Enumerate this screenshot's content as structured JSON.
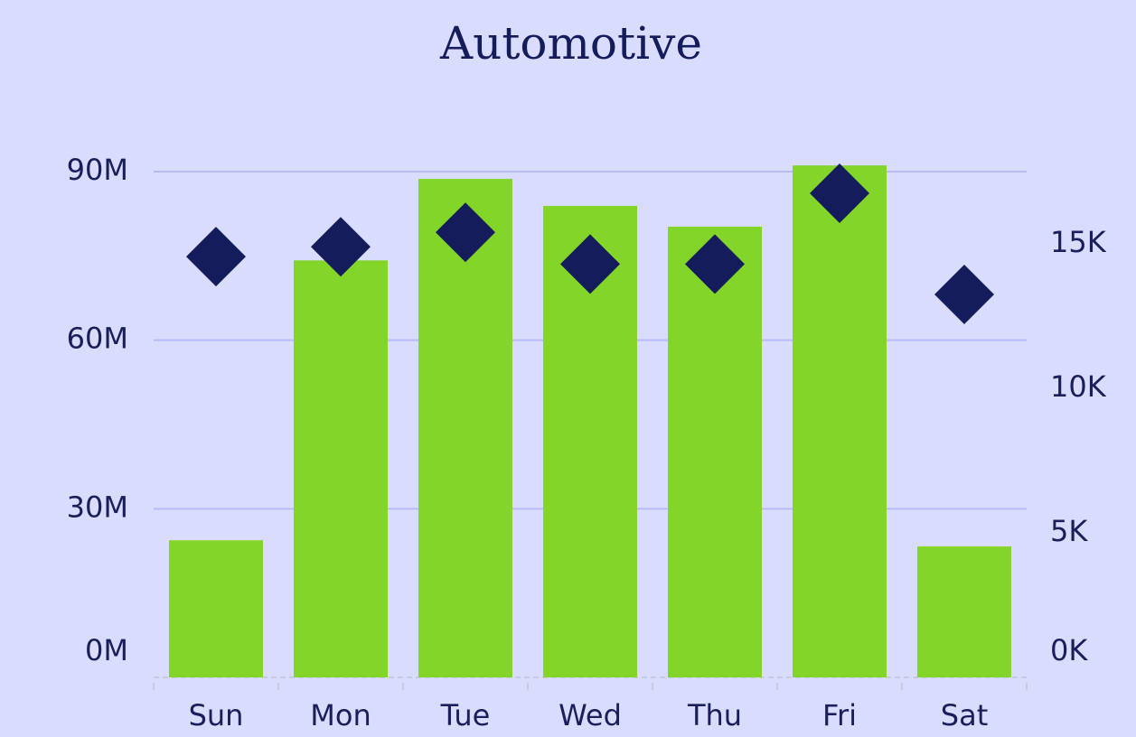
{
  "chart_data": {
    "type": "bar",
    "title": "Automotive",
    "categories": [
      "Sun",
      "Mon",
      "Tue",
      "Wed",
      "Thu",
      "Fri",
      "Sat"
    ],
    "series": [
      {
        "type": "bar",
        "color": "#84d52a",
        "values": [
          24.4,
          74.2,
          88.7,
          83.9,
          80.2,
          91.1,
          23.3
        ]
      },
      {
        "type": "scatter",
        "axis": "y2",
        "color": "#141c5c",
        "values": [
          14.56,
          14.9,
          15.4,
          14.3,
          14.3,
          16.75,
          13.25
        ]
      }
    ],
    "ylim": [
      0,
      90
    ],
    "yticks": [
      {
        "value": 0,
        "label": "0M"
      },
      {
        "value": 30,
        "label": "30M"
      },
      {
        "value": 60,
        "label": "60M"
      },
      {
        "value": 90,
        "label": "90M"
      }
    ],
    "y2lim": [
      0,
      17.5
    ],
    "y2ticks": [
      {
        "value": 0,
        "label": "0K"
      },
      {
        "value": 5,
        "label": "5K"
      },
      {
        "value": 10,
        "label": "10K"
      },
      {
        "value": 15,
        "label": "15K"
      }
    ],
    "grid": true
  }
}
